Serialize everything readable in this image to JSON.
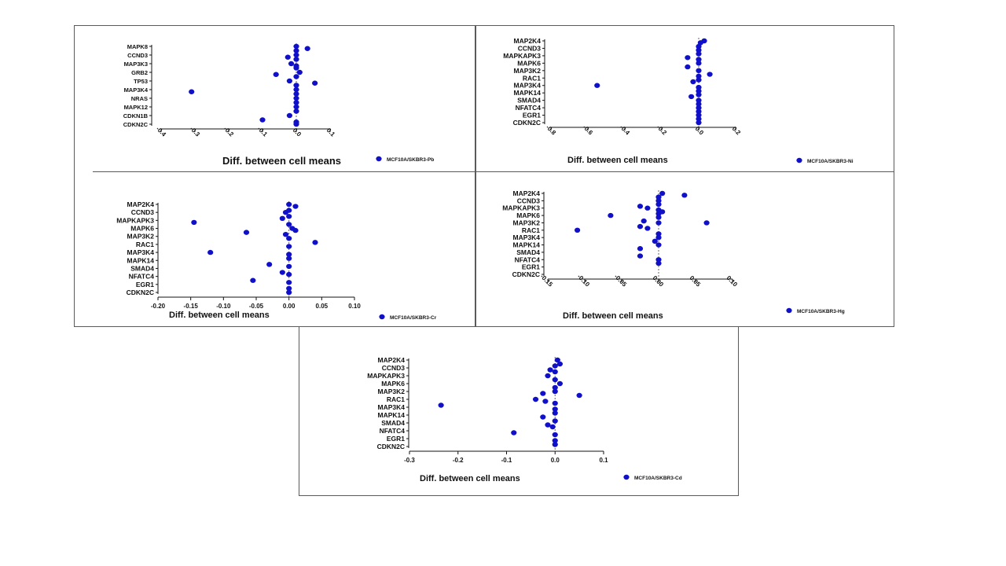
{
  "colors": {
    "marker": "#1010c8",
    "axis": "#111111",
    "frame": "#5a5a5a"
  },
  "chart_data": [
    {
      "type": "scatter",
      "xlabel": "Diff. between cell means",
      "legend": "MCF10A/SKBR3-Pb",
      "legend_placement": "bottom-right",
      "xlim": [
        -0.4,
        0.1
      ],
      "xticks": [
        -0.4,
        -0.3,
        -0.2,
        -0.1,
        0.0,
        0.1
      ],
      "tick_labels": [
        "-0.4",
        "-0.3",
        "-0.2",
        "-0.1",
        "0.0",
        "0.1"
      ],
      "tick_rotation": 45,
      "categories": [
        "MAPK8",
        "CCND3",
        "MAP3K3",
        "GRB2",
        "TP53",
        "MAP3K4",
        "NRAS",
        "MAPK12",
        "CDKN1B",
        "CDKN2C"
      ],
      "ylim": [
        0,
        18
      ],
      "points": [
        {
          "x": 0.0,
          "y": 0
        },
        {
          "x": 0.033,
          "y": 0.5
        },
        {
          "x": 0.0,
          "y": 1
        },
        {
          "x": 0.0,
          "y": 2
        },
        {
          "x": -0.025,
          "y": 2.5
        },
        {
          "x": 0.0,
          "y": 3
        },
        {
          "x": -0.015,
          "y": 4
        },
        {
          "x": 0.0,
          "y": 4.5
        },
        {
          "x": 0.0,
          "y": 5
        },
        {
          "x": -0.06,
          "y": 6.5
        },
        {
          "x": 0.01,
          "y": 6
        },
        {
          "x": 0.0,
          "y": 7
        },
        {
          "x": -0.02,
          "y": 8
        },
        {
          "x": 0.055,
          "y": 8.5
        },
        {
          "x": 0.0,
          "y": 9
        },
        {
          "x": -0.31,
          "y": 10.5
        },
        {
          "x": 0.0,
          "y": 10
        },
        {
          "x": 0.0,
          "y": 11
        },
        {
          "x": 0.0,
          "y": 12
        },
        {
          "x": 0.0,
          "y": 13
        },
        {
          "x": 0.0,
          "y": 14
        },
        {
          "x": 0.0,
          "y": 15
        },
        {
          "x": -0.02,
          "y": 16
        },
        {
          "x": -0.1,
          "y": 17
        },
        {
          "x": 0.0,
          "y": 17.5
        },
        {
          "x": 0.0,
          "y": 18
        }
      ]
    },
    {
      "type": "scatter",
      "xlabel": "Diff. between cell means",
      "legend": "MCF10A/SKBR3-Ni",
      "legend_placement": "bottom-right",
      "xlim": [
        -0.8,
        0.2
      ],
      "xticks": [
        -0.8,
        -0.6,
        -0.4,
        -0.2,
        0.0,
        0.2
      ],
      "tick_labels": [
        "-0.8",
        "-0.6",
        "-0.4",
        "-0.2",
        "0.0",
        "0.2"
      ],
      "tick_rotation": 45,
      "categories": [
        "MAP2K4",
        "CCND3",
        "MAPKAPK3",
        "MAPK6",
        "MAP3K2",
        "RAC1",
        "MAP3K4",
        "MAPK14",
        "SMAD4",
        "NFATC4",
        "EGR1",
        "CDKN2C"
      ],
      "ylim": [
        0,
        22
      ],
      "points": [
        {
          "x": 0.03,
          "y": 0
        },
        {
          "x": 0.01,
          "y": 0.5
        },
        {
          "x": 0.0,
          "y": 1.5
        },
        {
          "x": 0.0,
          "y": 2.5
        },
        {
          "x": 0.0,
          "y": 3.5
        },
        {
          "x": -0.06,
          "y": 4.5
        },
        {
          "x": 0.0,
          "y": 5
        },
        {
          "x": 0.0,
          "y": 6
        },
        {
          "x": -0.06,
          "y": 7
        },
        {
          "x": 0.0,
          "y": 8
        },
        {
          "x": 0.06,
          "y": 9
        },
        {
          "x": 0.0,
          "y": 9.5
        },
        {
          "x": 0.0,
          "y": 10.5
        },
        {
          "x": -0.03,
          "y": 11
        },
        {
          "x": -0.55,
          "y": 12
        },
        {
          "x": 0.0,
          "y": 12.5
        },
        {
          "x": 0.0,
          "y": 13.5
        },
        {
          "x": 0.0,
          "y": 14.5
        },
        {
          "x": -0.04,
          "y": 15
        },
        {
          "x": 0.0,
          "y": 16
        },
        {
          "x": 0.0,
          "y": 17
        },
        {
          "x": 0.0,
          "y": 18
        },
        {
          "x": 0.0,
          "y": 19
        },
        {
          "x": 0.0,
          "y": 20
        },
        {
          "x": 0.0,
          "y": 21
        },
        {
          "x": 0.0,
          "y": 22
        }
      ]
    },
    {
      "type": "scatter",
      "xlabel": "Diff. between cell means",
      "legend": "MCF10A/SKBR3-Cr",
      "legend_placement": "bottom-right",
      "xlim": [
        -0.2,
        0.1
      ],
      "xticks": [
        -0.2,
        -0.15,
        -0.1,
        -0.05,
        0.0,
        0.05,
        0.1
      ],
      "tick_labels": [
        "-0.20",
        "-0.15",
        "-0.10",
        "-0.05",
        "0.00",
        "0.05",
        "0.10"
      ],
      "tick_rotation": 0,
      "categories": [
        "MAP2K4",
        "CCND3",
        "MAPKAPK3",
        "MAPK6",
        "MAP3K2",
        "RAC1",
        "MAP3K4",
        "MAPK14",
        "SMAD4",
        "NFATC4",
        "EGR1",
        "CDKN2C"
      ],
      "ylim": [
        0,
        22
      ],
      "points": [
        {
          "x": 0.0,
          "y": 0
        },
        {
          "x": 0.01,
          "y": 0.5
        },
        {
          "x": 0.0,
          "y": 1.5
        },
        {
          "x": -0.005,
          "y": 2
        },
        {
          "x": 0.0,
          "y": 3
        },
        {
          "x": -0.01,
          "y": 3.5
        },
        {
          "x": -0.145,
          "y": 4.5
        },
        {
          "x": 0.0,
          "y": 5
        },
        {
          "x": 0.005,
          "y": 6
        },
        {
          "x": 0.01,
          "y": 6.5
        },
        {
          "x": -0.065,
          "y": 7
        },
        {
          "x": -0.005,
          "y": 7.5
        },
        {
          "x": 0.0,
          "y": 8.5
        },
        {
          "x": 0.04,
          "y": 9.5
        },
        {
          "x": 0.0,
          "y": 10.5
        },
        {
          "x": -0.12,
          "y": 12
        },
        {
          "x": 0.0,
          "y": 12.5
        },
        {
          "x": 0.0,
          "y": 13.5
        },
        {
          "x": -0.03,
          "y": 15
        },
        {
          "x": 0.0,
          "y": 15.5
        },
        {
          "x": -0.01,
          "y": 17
        },
        {
          "x": 0.0,
          "y": 17.5
        },
        {
          "x": -0.055,
          "y": 19
        },
        {
          "x": 0.0,
          "y": 19.5
        },
        {
          "x": 0.0,
          "y": 21
        },
        {
          "x": 0.0,
          "y": 22
        }
      ]
    },
    {
      "type": "scatter",
      "xlabel": "Diff. between cell means",
      "legend": "MCF10A/SKBR3-Hg",
      "legend_placement": "bottom-right",
      "xlim": [
        -0.15,
        0.1
      ],
      "xticks": [
        -0.15,
        -0.1,
        -0.05,
        0.0,
        0.05,
        0.1
      ],
      "tick_labels": [
        "-0.15",
        "-0.10",
        "-0.05",
        "0.00",
        "0.05",
        "0.10"
      ],
      "tick_rotation": 45,
      "categories": [
        "MAP2K4",
        "CCND3",
        "MAPKAPK3",
        "MAPK6",
        "MAP3K2",
        "RAC1",
        "MAP3K4",
        "MAPK14",
        "SMAD4",
        "NFATC4",
        "EGR1",
        "CDKN2C"
      ],
      "ylim": [
        0,
        22
      ],
      "points": [
        {
          "x": 0.005,
          "y": 0
        },
        {
          "x": 0.035,
          "y": 0.5
        },
        {
          "x": 0.0,
          "y": 1
        },
        {
          "x": 0.0,
          "y": 2
        },
        {
          "x": 0.0,
          "y": 3
        },
        {
          "x": -0.025,
          "y": 3.5
        },
        {
          "x": -0.015,
          "y": 4
        },
        {
          "x": 0.0,
          "y": 4.5
        },
        {
          "x": 0.005,
          "y": 5
        },
        {
          "x": 0.0,
          "y": 5.5
        },
        {
          "x": -0.065,
          "y": 6
        },
        {
          "x": 0.0,
          "y": 6.5
        },
        {
          "x": -0.02,
          "y": 7.5
        },
        {
          "x": 0.0,
          "y": 8
        },
        {
          "x": 0.065,
          "y": 8
        },
        {
          "x": -0.025,
          "y": 9
        },
        {
          "x": -0.015,
          "y": 9.5
        },
        {
          "x": -0.11,
          "y": 10
        },
        {
          "x": 0.0,
          "y": 11
        },
        {
          "x": 0.0,
          "y": 12
        },
        {
          "x": -0.005,
          "y": 13
        },
        {
          "x": 0.0,
          "y": 14
        },
        {
          "x": -0.025,
          "y": 15
        },
        {
          "x": -0.025,
          "y": 17
        },
        {
          "x": 0.0,
          "y": 18
        },
        {
          "x": 0.0,
          "y": 19
        }
      ]
    },
    {
      "type": "scatter",
      "xlabel": "Diff. between cell means",
      "legend": "MCF10A/SKBR3-Cd",
      "legend_placement": "bottom-right",
      "xlim": [
        -0.3,
        0.1
      ],
      "xticks": [
        -0.3,
        -0.2,
        -0.1,
        0.0,
        0.1
      ],
      "tick_labels": [
        "-0.3",
        "-0.2",
        "-0.1",
        "0.0",
        "0.1"
      ],
      "tick_rotation": 0,
      "categories": [
        "MAP2K4",
        "CCND3",
        "MAPKAPK3",
        "MAPK6",
        "MAP3K2",
        "RAC1",
        "MAP3K4",
        "MAPK14",
        "SMAD4",
        "NFATC4",
        "EGR1",
        "CDKN2C"
      ],
      "ylim": [
        0,
        22
      ],
      "points": [
        {
          "x": 0.005,
          "y": 0
        },
        {
          "x": 0.01,
          "y": 1
        },
        {
          "x": 0.0,
          "y": 1.5
        },
        {
          "x": -0.01,
          "y": 2.5
        },
        {
          "x": 0.0,
          "y": 3
        },
        {
          "x": -0.015,
          "y": 4
        },
        {
          "x": 0.0,
          "y": 5
        },
        {
          "x": 0.01,
          "y": 6
        },
        {
          "x": 0.0,
          "y": 7
        },
        {
          "x": 0.0,
          "y": 8
        },
        {
          "x": -0.025,
          "y": 8.5
        },
        {
          "x": 0.05,
          "y": 9
        },
        {
          "x": -0.04,
          "y": 10
        },
        {
          "x": -0.02,
          "y": 10.5
        },
        {
          "x": 0.0,
          "y": 11
        },
        {
          "x": -0.235,
          "y": 11.5
        },
        {
          "x": 0.0,
          "y": 12.5
        },
        {
          "x": 0.0,
          "y": 13.5
        },
        {
          "x": -0.025,
          "y": 14.5
        },
        {
          "x": 0.0,
          "y": 15.5
        },
        {
          "x": -0.015,
          "y": 16.5
        },
        {
          "x": -0.005,
          "y": 17
        },
        {
          "x": -0.085,
          "y": 18.5
        },
        {
          "x": 0.0,
          "y": 19
        },
        {
          "x": 0.0,
          "y": 20.5
        },
        {
          "x": 0.0,
          "y": 21.5
        }
      ]
    }
  ]
}
